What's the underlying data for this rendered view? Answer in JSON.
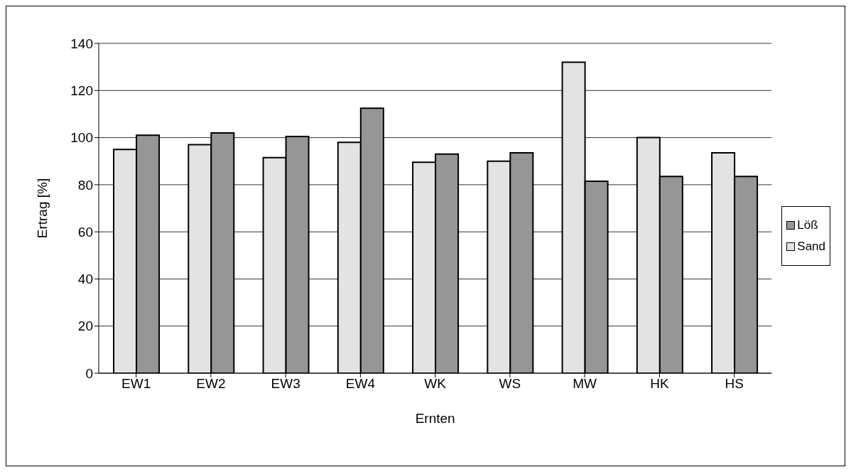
{
  "chart_data": {
    "type": "bar",
    "xlabel": "Ernten",
    "ylabel": "Ertrag [%]",
    "categories": [
      "EW1",
      "EW2",
      "EW3",
      "EW4",
      "WK",
      "WS",
      "MW",
      "HK",
      "HS"
    ],
    "series": [
      {
        "name": "Sand",
        "color": "#e3e3e3",
        "values": [
          95,
          97,
          91.5,
          98,
          89.5,
          90,
          132,
          100,
          93.5
        ]
      },
      {
        "name": "Löß",
        "color": "#969696",
        "values": [
          101,
          102,
          100.5,
          112.5,
          93,
          93.5,
          81.5,
          83.5,
          83.5
        ]
      }
    ],
    "ylim": [
      0,
      140
    ],
    "yticks": [
      0,
      20,
      40,
      60,
      80,
      100,
      120,
      140
    ],
    "grid": "y",
    "legend": "right"
  }
}
